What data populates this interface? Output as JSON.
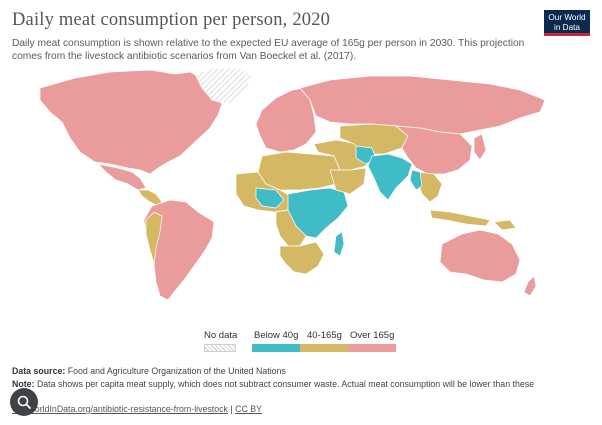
{
  "header": {
    "title": "Daily meat consumption per person, 2020",
    "subtitle": "Daily meat consumption is shown relative to the expected EU average of 165g per person in 2030. This projection comes from the livestock antibiotic scenarios from Van Boeckel et al. (2017).",
    "logo_line1": "Our World",
    "logo_line2": "in Data"
  },
  "colors": {
    "below_40": "#3fbcc6",
    "mid": "#d4b864",
    "over_165": "#ea9c9c",
    "no_data": "#cccccc",
    "background": "#ffffff"
  },
  "legend": {
    "no_data_label": "No data",
    "categories": [
      {
        "label": "Below 40g",
        "color": "#3fbcc6"
      },
      {
        "label": "40-165g",
        "color": "#d4b864"
      },
      {
        "label": "Over 165g",
        "color": "#ea9c9c"
      }
    ]
  },
  "footer": {
    "source_label": "Data source:",
    "source_text": "Food and Agriculture Organization of the United Nations",
    "note_label": "Note:",
    "note_text": "Data shows per capita meat supply, which does not subtract consumer waste. Actual meat consumption will be lower than these",
    "link_text": "OurWorldInData.org/antibiotic-resistance-from-livestock",
    "separator": "|",
    "license": "CC BY"
  },
  "map_regions": [
    {
      "name": "north-america",
      "category": "over_165"
    },
    {
      "name": "greenland",
      "category": "no_data"
    },
    {
      "name": "mexico",
      "category": "over_165"
    },
    {
      "name": "central-america",
      "category": "mid"
    },
    {
      "name": "south-america",
      "category": "over_165"
    },
    {
      "name": "europe",
      "category": "over_165"
    },
    {
      "name": "russia",
      "category": "over_165"
    },
    {
      "name": "north-africa",
      "category": "mid"
    },
    {
      "name": "west-africa",
      "category": "mid"
    },
    {
      "name": "east-africa",
      "category": "below_40"
    },
    {
      "name": "southern-africa",
      "category": "mid"
    },
    {
      "name": "middle-east",
      "category": "mid"
    },
    {
      "name": "central-asia",
      "category": "mid"
    },
    {
      "name": "south-asia",
      "category": "below_40"
    },
    {
      "name": "china",
      "category": "over_165"
    },
    {
      "name": "southeast-asia",
      "category": "mid"
    },
    {
      "name": "australia",
      "category": "over_165"
    },
    {
      "name": "new-zealand",
      "category": "over_165"
    }
  ]
}
